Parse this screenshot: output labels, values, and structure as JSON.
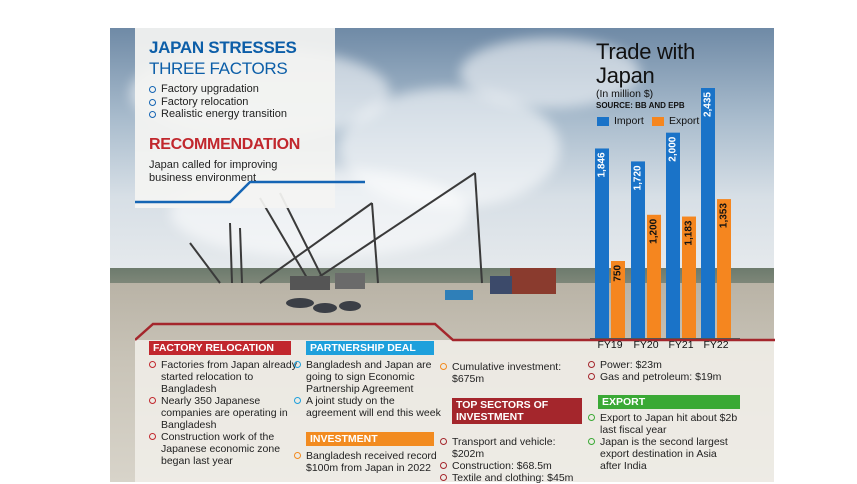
{
  "header": {
    "title_line1": "JAPAN STRESSES",
    "title_line2": "THREE FACTORS",
    "factors": [
      "Factory upgradation",
      "Factory relocation",
      "Realistic energy transition"
    ],
    "recommendation_title": "RECOMMENDATION",
    "recommendation_text": "Japan called for improving business environment"
  },
  "sections": {
    "factory_relocation": {
      "label": "FACTORY RELOCATION",
      "items": [
        "Factories from Japan already started relocation to Bangladesh",
        "Nearly 350 Japanese companies are operating in Bangladesh",
        "Construction work of the Japanese economic zone began last year"
      ]
    },
    "partnership_deal": {
      "label": "PARTNERSHIP DEAL",
      "items": [
        "Bangladesh and Japan are going to sign Economic Partnership Agreement",
        "A joint study on the agreement will end this week"
      ]
    },
    "investment": {
      "label": "INVESTMENT",
      "items": [
        "Bangladesh received record $100m from Japan in 2022"
      ]
    },
    "cumulative": {
      "items": [
        "Cumulative investment: $675m"
      ]
    },
    "top_sectors": {
      "label_line1": "TOP SECTORS OF",
      "label_line2": "INVESTMENT",
      "items": [
        "Transport and vehicle: $202m",
        "Construction: $68.5m",
        "Textile and clothing: $45m"
      ]
    },
    "power": {
      "items": [
        "Power: $23m",
        "Gas and petroleum: $19m"
      ]
    },
    "export": {
      "label": "EXPORT",
      "items": [
        "Export to Japan hit about $2b last fiscal year",
        "Japan is the second largest export destination in Asia after India"
      ]
    }
  },
  "colors": {
    "blue": "#1565b4",
    "red": "#c1272d",
    "orange": "#f28b20",
    "sky_blue": "#1ea0dc",
    "maroon": "#a4262c",
    "green": "#3aa935",
    "bar_import": "#1a73c8",
    "bar_export": "#f5861f"
  },
  "chart_data": {
    "type": "bar",
    "title_line1": "Trade with",
    "title_line2": "Japan",
    "subtitle": "(In million $)",
    "source": "SOURCE: BB AND EPB",
    "categories": [
      "FY19",
      "FY20",
      "FY21",
      "FY22"
    ],
    "series": [
      {
        "name": "Import",
        "values": [
          1846,
          1720,
          2000,
          2435
        ],
        "labels": [
          "1,846",
          "1,720",
          "2,000",
          "2,435"
        ]
      },
      {
        "name": "Export",
        "values": [
          750,
          1200,
          1183,
          1353
        ],
        "labels": [
          "750",
          "1,200",
          "1,183",
          "1,353"
        ]
      }
    ],
    "ylim": [
      0,
      2435
    ],
    "legend": "top"
  }
}
